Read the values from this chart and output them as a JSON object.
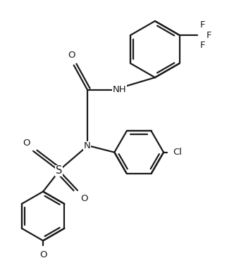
{
  "bg_color": "#ffffff",
  "line_color": "#1a1a1a",
  "lw": 1.6,
  "dbo": 0.12,
  "fs": 9.5,
  "figsize": [
    3.49,
    3.67
  ],
  "dpi": 100,
  "xlim": [
    0.0,
    10.0
  ],
  "ylim": [
    0.0,
    10.5
  ]
}
